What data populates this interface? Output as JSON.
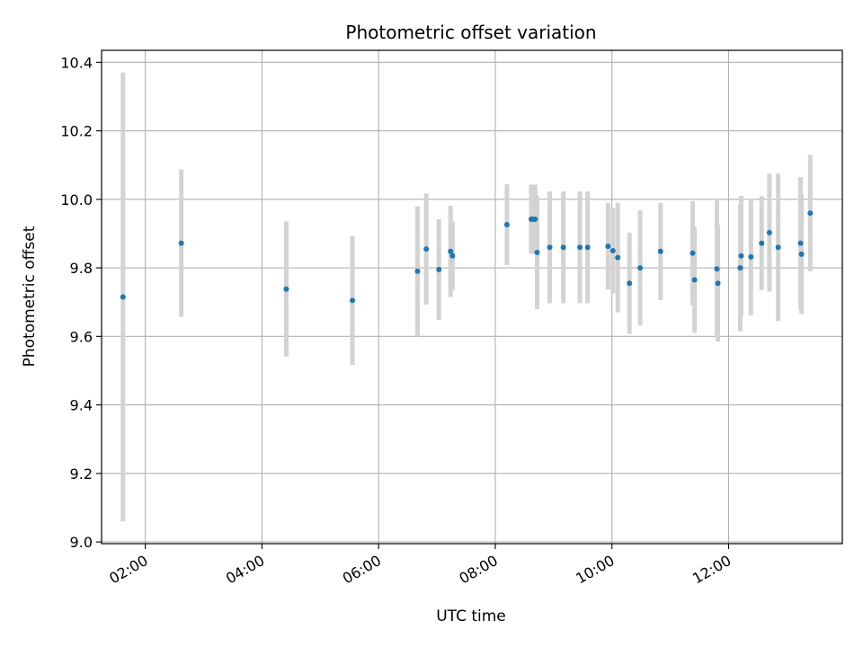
{
  "chart_data": {
    "type": "scatter",
    "title": "Photometric offset variation",
    "xlabel": "UTC time",
    "ylabel": "Photometric offset",
    "x_tick_labels": [
      "02:00",
      "04:00",
      "06:00",
      "08:00",
      "10:00",
      "12:00"
    ],
    "x_tick_hours": [
      2,
      4,
      6,
      8,
      10,
      12
    ],
    "y_ticks": [
      9.0,
      9.2,
      9.4,
      9.6,
      9.8,
      10.0,
      10.2,
      10.4
    ],
    "y_tick_labels": [
      "9.0",
      "9.2",
      "9.4",
      "9.6",
      "9.8",
      "10.0",
      "10.2",
      "10.4"
    ],
    "xlim": [
      "01:15",
      "13:57"
    ],
    "ylim": [
      8.995,
      10.435
    ],
    "grid": true,
    "point_color": "#1f77b4",
    "errorbar_color": "#d3d3d3",
    "points": [
      {
        "x": "01:37",
        "y": 9.715,
        "err": 0.655
      },
      {
        "x": "02:37",
        "y": 9.872,
        "err": 0.215
      },
      {
        "x": "04:25",
        "y": 9.738,
        "err": 0.197
      },
      {
        "x": "05:33",
        "y": 9.705,
        "err": 0.188
      },
      {
        "x": "06:40",
        "y": 9.79,
        "err": 0.19
      },
      {
        "x": "06:49",
        "y": 9.855,
        "err": 0.162
      },
      {
        "x": "07:02",
        "y": 9.795,
        "err": 0.147
      },
      {
        "x": "07:14",
        "y": 9.848,
        "err": 0.133
      },
      {
        "x": "07:16",
        "y": 9.835,
        "err": 0.101
      },
      {
        "x": "08:12",
        "y": 9.926,
        "err": 0.118
      },
      {
        "x": "08:37",
        "y": 9.942,
        "err": 0.101
      },
      {
        "x": "08:39",
        "y": 9.942,
        "err": 0.101
      },
      {
        "x": "08:41",
        "y": 9.942,
        "err": 0.101
      },
      {
        "x": "08:43",
        "y": 9.845,
        "err": 0.165
      },
      {
        "x": "08:56",
        "y": 9.86,
        "err": 0.163
      },
      {
        "x": "09:10",
        "y": 9.86,
        "err": 0.163
      },
      {
        "x": "09:27",
        "y": 9.86,
        "err": 0.163
      },
      {
        "x": "09:35",
        "y": 9.86,
        "err": 0.163
      },
      {
        "x": "09:56",
        "y": 9.863,
        "err": 0.126
      },
      {
        "x": "10:01",
        "y": 9.85,
        "err": 0.125
      },
      {
        "x": "10:06",
        "y": 9.83,
        "err": 0.16
      },
      {
        "x": "10:18",
        "y": 9.755,
        "err": 0.148
      },
      {
        "x": "10:29",
        "y": 9.8,
        "err": 0.168
      },
      {
        "x": "10:50",
        "y": 9.848,
        "err": 0.142
      },
      {
        "x": "11:23",
        "y": 9.843,
        "err": 0.152
      },
      {
        "x": "11:25",
        "y": 9.765,
        "err": 0.155
      },
      {
        "x": "11:48",
        "y": 9.797,
        "err": 0.2
      },
      {
        "x": "11:49",
        "y": 9.755,
        "err": 0.17
      },
      {
        "x": "12:12",
        "y": 9.8,
        "err": 0.185
      },
      {
        "x": "12:13",
        "y": 9.835,
        "err": 0.175
      },
      {
        "x": "12:23",
        "y": 9.832,
        "err": 0.17
      },
      {
        "x": "12:34",
        "y": 9.872,
        "err": 0.137
      },
      {
        "x": "12:42",
        "y": 9.903,
        "err": 0.172
      },
      {
        "x": "12:51",
        "y": 9.86,
        "err": 0.215
      },
      {
        "x": "13:14",
        "y": 9.872,
        "err": 0.193
      },
      {
        "x": "13:15",
        "y": 9.84,
        "err": 0.175
      },
      {
        "x": "13:24",
        "y": 9.96,
        "err": 0.17
      }
    ]
  }
}
